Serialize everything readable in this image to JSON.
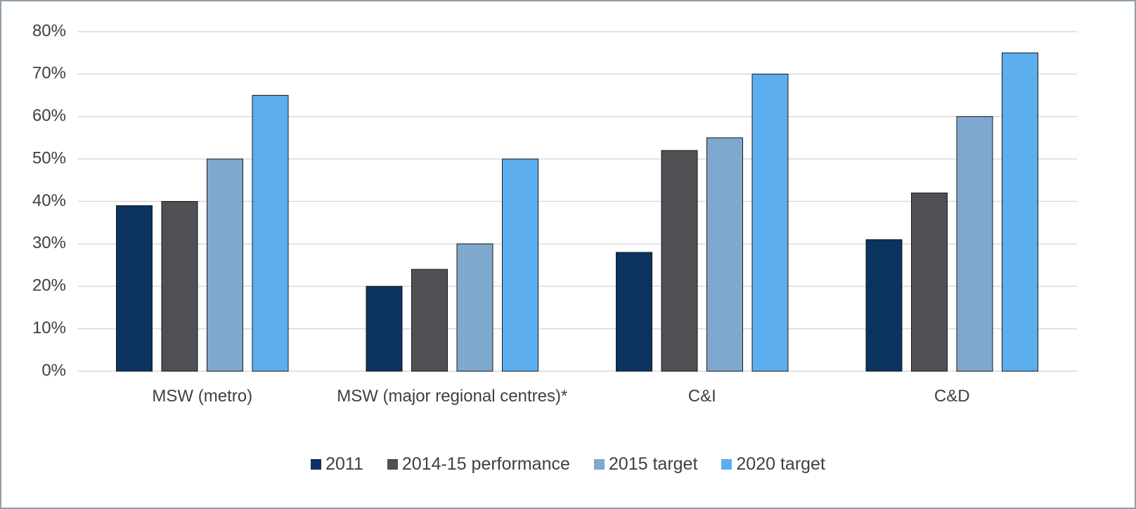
{
  "chart_data": {
    "type": "bar",
    "categories": [
      "MSW (metro)",
      "MSW (major regional centres)*",
      "C&I",
      "C&D"
    ],
    "series": [
      {
        "name": "2011",
        "color": "#0b3360",
        "values": [
          39,
          20,
          28,
          31
        ]
      },
      {
        "name": "2014-15 performance",
        "color": "#4e5054",
        "values": [
          40,
          24,
          52,
          42
        ]
      },
      {
        "name": "2015 target",
        "color": "#7ea8cd",
        "values": [
          50,
          30,
          55,
          60
        ]
      },
      {
        "name": "2020 target",
        "color": "#5daeee",
        "values": [
          65,
          50,
          70,
          75
        ]
      }
    ],
    "ylim": [
      0,
      80
    ],
    "yticks": [
      {
        "value": 0,
        "label": "0%"
      },
      {
        "value": 10,
        "label": "10%"
      },
      {
        "value": 20,
        "label": "20%"
      },
      {
        "value": 30,
        "label": "30%"
      },
      {
        "value": 40,
        "label": "40%"
      },
      {
        "value": 50,
        "label": "50%"
      },
      {
        "value": 60,
        "label": "60%"
      },
      {
        "value": 70,
        "label": "70%"
      },
      {
        "value": 80,
        "label": "80%"
      }
    ],
    "grid": true
  }
}
